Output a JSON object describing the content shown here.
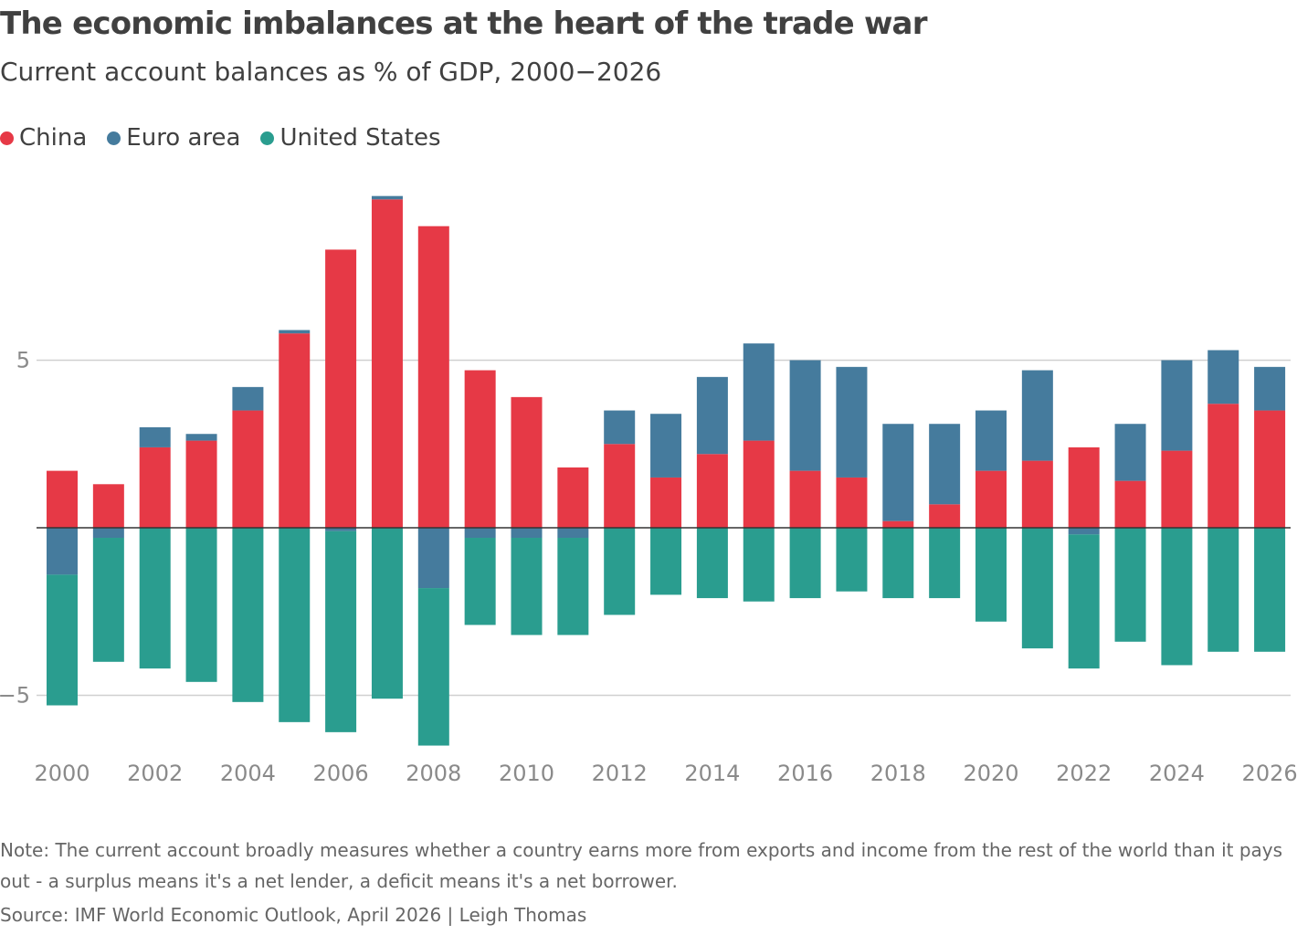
{
  "header": {
    "title": "The economic imbalances at the heart of the trade war",
    "subtitle": "Current account balances as % of GDP, 2000−2026"
  },
  "footer": {
    "note": "Note: The current account broadly measures whether a country earns more from exports and income from the rest of the world than it pays out - a surplus means it's a net lender, a deficit means it's a net borrower.",
    "source": "Source: IMF World Economic Outlook, April 2026 | Leigh Thomas"
  },
  "chart_data": {
    "type": "bar",
    "stacked": true,
    "title": "The economic imbalances at the heart of the trade war",
    "subtitle": "Current account balances as % of GDP, 2000−2026",
    "xlabel": "",
    "ylabel": "",
    "ylim": [
      -6.9,
      9.9
    ],
    "yticks": [
      5,
      -5
    ],
    "ytick_labels": [
      "5",
      "−5"
    ],
    "xtick_labels": [
      "2000",
      "2002",
      "2004",
      "2006",
      "2008",
      "2010",
      "2012",
      "2014",
      "2016",
      "2018",
      "2020",
      "2022",
      "2024",
      "2026"
    ],
    "gridlines": true,
    "legend": "top-left",
    "categories": [
      "2000",
      "2001",
      "2002",
      "2003",
      "2004",
      "2005",
      "2006",
      "2007",
      "2008",
      "2009",
      "2010",
      "2011",
      "2012",
      "2013",
      "2014",
      "2015",
      "2016",
      "2017",
      "2018",
      "2019",
      "2020",
      "2021",
      "2022",
      "2023",
      "2024",
      "2025",
      "2026"
    ],
    "series": [
      {
        "name": "China",
        "color": "#e63946",
        "values": [
          1.7,
          1.3,
          2.4,
          2.6,
          3.5,
          5.8,
          8.3,
          9.8,
          9.0,
          4.7,
          3.9,
          1.8,
          2.5,
          1.5,
          2.2,
          2.6,
          1.7,
          1.5,
          0.2,
          0.7,
          1.7,
          2.0,
          2.4,
          1.4,
          2.3,
          3.7,
          3.5
        ]
      },
      {
        "name": "Euro area",
        "color": "#457b9d",
        "values": [
          -1.4,
          -0.3,
          0.6,
          0.2,
          0.7,
          0.1,
          -0.1,
          0.1,
          -1.8,
          -0.3,
          -0.3,
          -0.3,
          1.0,
          1.9,
          2.3,
          2.9,
          3.3,
          3.3,
          2.9,
          2.4,
          1.8,
          2.7,
          -0.2,
          1.7,
          2.7,
          1.6,
          1.3
        ]
      },
      {
        "name": "United States",
        "color": "#2a9d8f",
        "values": [
          -3.9,
          -3.7,
          -4.2,
          -4.6,
          -5.2,
          -5.8,
          -6.0,
          -5.1,
          -4.7,
          -2.6,
          -2.9,
          -2.9,
          -2.6,
          -2.0,
          -2.1,
          -2.2,
          -2.1,
          -1.9,
          -2.1,
          -2.1,
          -2.8,
          -3.6,
          -4.0,
          -3.4,
          -4.1,
          -3.7,
          -3.7
        ]
      }
    ]
  }
}
